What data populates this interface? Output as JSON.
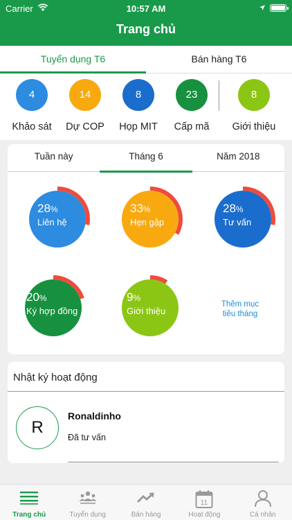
{
  "status": {
    "carrier": "Carrier",
    "time": "10:57 AM"
  },
  "header": {
    "title": "Trang chủ"
  },
  "top_tabs": [
    {
      "label": "Tuyển dụng T6",
      "active": true
    },
    {
      "label": "Bán hàng T6",
      "active": false
    }
  ],
  "stats": [
    {
      "value": "4",
      "label": "Khảo sát",
      "color": "#2d8be0"
    },
    {
      "value": "14",
      "label": "Dự COP",
      "color": "#f8a90f"
    },
    {
      "value": "8",
      "label": "Họp MIT",
      "color": "#1a6dcc"
    },
    {
      "value": "23",
      "label": "Cấp mã",
      "color": "#17913f"
    },
    {
      "value": "8",
      "label": "Giới thiệu",
      "color": "#8cc614"
    }
  ],
  "period_tabs": [
    {
      "label": "Tuần này",
      "active": false
    },
    {
      "label": "Tháng 6",
      "active": true
    },
    {
      "label": "Năm 2018",
      "active": false
    }
  ],
  "rings": [
    {
      "percent": "28",
      "unit": "%",
      "name": "Liên hệ",
      "progress": 0.28,
      "color": "#2d8be0"
    },
    {
      "percent": "33",
      "unit": "%",
      "name": "Hẹn gặp",
      "progress": 0.33,
      "color": "#f8a90f"
    },
    {
      "percent": "28",
      "unit": "%",
      "name": "Tư vấn",
      "progress": 0.28,
      "color": "#1a6dcc"
    },
    {
      "percent": "20",
      "unit": "%",
      "name": "Ký hợp đồng",
      "progress": 0.2,
      "color": "#17913f"
    },
    {
      "percent": "9",
      "unit": "%",
      "name": "Giới thiệu",
      "progress": 0.09,
      "color": "#8cc614"
    }
  ],
  "ring_accent_color": "#ef4b3d",
  "add_more": {
    "line1": "Thêm mục",
    "line2": "tiêu tháng"
  },
  "activity": {
    "title": "Nhật ký hoạt động",
    "entries": [
      {
        "avatar": "R",
        "name": "Ronaldinho",
        "action": "Đã tư vấn"
      }
    ]
  },
  "bottom_nav": [
    {
      "label": "Trang chủ",
      "icon": "menu-lines-icon",
      "active": true
    },
    {
      "label": "Tuyển dụng",
      "icon": "team-icon",
      "active": false
    },
    {
      "label": "Bán hàng",
      "icon": "trend-up-icon",
      "active": false
    },
    {
      "label": "Hoạt động",
      "icon": "calendar-icon",
      "calendar_day": "11",
      "active": false
    },
    {
      "label": "Cá nhân",
      "icon": "user-icon",
      "active": false
    }
  ],
  "brand_color": "#199a4a"
}
